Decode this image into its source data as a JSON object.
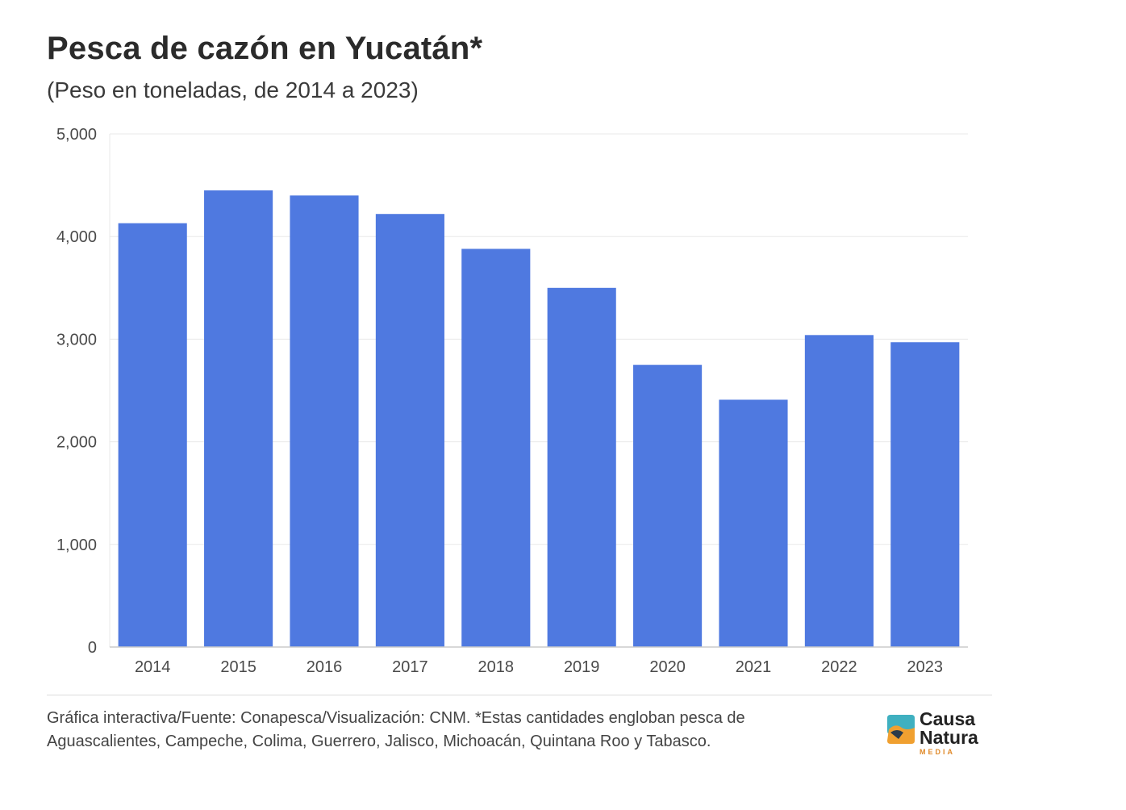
{
  "header": {
    "title": "Pesca de cazón en Yucatán*",
    "subtitle": "(Peso en toneladas, de 2014 a 2023)"
  },
  "footer": {
    "text": "Gráfica interactiva/Fuente: Conapesca/Visualización: CNM. *Estas cantidades engloban pesca de Aguascalientes, Campeche, Colima, Guerrero, Jalisco, Michoacán, Quintana Roo y Tabasco."
  },
  "logo": {
    "line1": "Causa",
    "line2": "Natura",
    "line3": "MEDIA"
  },
  "colors": {
    "bar": "#4f79e0",
    "grid": "#e8e8e8",
    "axis": "#cccccc",
    "logo_teal": "#3fb0c0",
    "logo_orange": "#f0a030",
    "logo_dark": "#2a3a4a"
  },
  "chart_data": {
    "type": "bar",
    "title": "Pesca de cazón en Yucatán*",
    "subtitle": "(Peso en toneladas, de 2014 a 2023)",
    "xlabel": "",
    "ylabel": "",
    "categories": [
      "2014",
      "2015",
      "2016",
      "2017",
      "2018",
      "2019",
      "2020",
      "2021",
      "2022",
      "2023"
    ],
    "values": [
      4130,
      4450,
      4400,
      4220,
      3880,
      3500,
      2750,
      2410,
      3040,
      2970
    ],
    "ylim": [
      0,
      5000
    ],
    "yticks": [
      0,
      1000,
      2000,
      3000,
      4000,
      5000
    ],
    "ytick_labels": [
      "0",
      "1,000",
      "2,000",
      "3,000",
      "4,000",
      "5,000"
    ],
    "grid": true,
    "legend": "none"
  }
}
